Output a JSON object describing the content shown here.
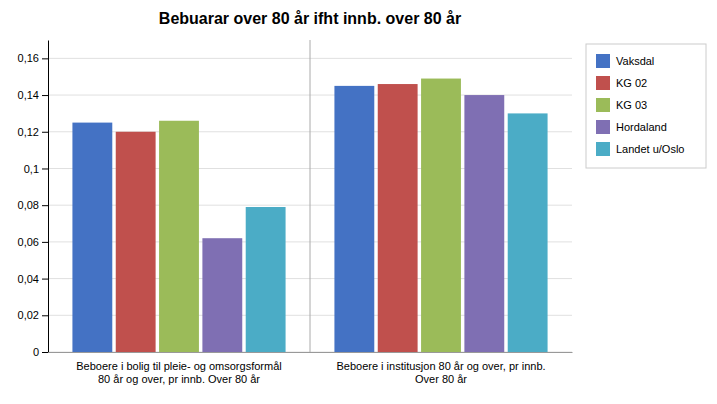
{
  "chart_data": {
    "type": "bar",
    "title": "Bebuarar over 80 år ifht innb. over 80 år",
    "categories": [
      "Beboere i bolig til pleie- og omsorgsformål\n80 år og over, pr innb. Over 80 år",
      "Beboere i institusjon 80 år og over, pr innb.\nOver 80 år"
    ],
    "series": [
      {
        "name": "Vaksdal",
        "color": "#4472C4",
        "values": [
          0.125,
          0.145
        ]
      },
      {
        "name": "KG 02",
        "color": "#C0504D",
        "values": [
          0.12,
          0.146
        ]
      },
      {
        "name": "KG 03",
        "color": "#9BBB59",
        "values": [
          0.126,
          0.149
        ]
      },
      {
        "name": "Hordaland",
        "color": "#7F6FB3",
        "values": [
          0.062,
          0.14
        ]
      },
      {
        "name": "Landet u/Oslo",
        "color": "#4BACC6",
        "values": [
          0.079,
          0.13
        ]
      }
    ],
    "ylim": [
      0,
      0.17
    ],
    "yticks": [
      0,
      {
        "value": 0.02,
        "label": "0,02"
      },
      {
        "value": 0.04,
        "label": "0,04"
      },
      {
        "value": 0.06,
        "label": "0,06"
      },
      {
        "value": 0.08,
        "label": "0,08"
      },
      {
        "value": 0.1,
        "label": "0,1"
      },
      {
        "value": 0.12,
        "label": "0,12"
      },
      {
        "value": 0.14,
        "label": "0,14"
      },
      {
        "value": 0.16,
        "label": "0,16"
      }
    ],
    "grid": true,
    "legend": "right"
  }
}
